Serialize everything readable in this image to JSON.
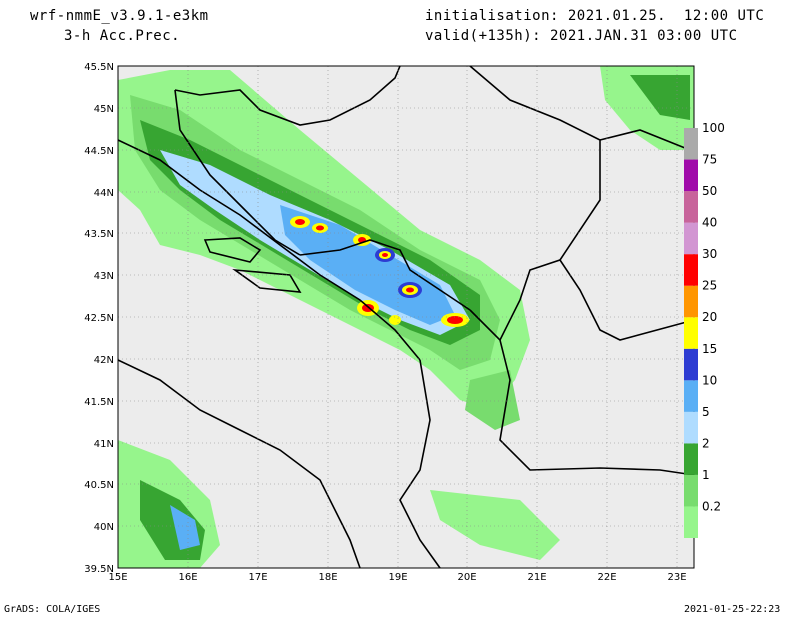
{
  "header": {
    "model": "wrf-nmmE_v3.9.1-e3km",
    "variable": "3-h Acc.Prec.",
    "init": "initialisation: 2021.01.25.  12:00 UTC",
    "valid": "valid(+135h): 2021.JAN.31 03:00 UTC"
  },
  "footer": {
    "credit": "GrADS: COLA/IGES",
    "timestamp": "2021-01-25-22:23"
  },
  "map": {
    "lon_ticks": [
      "15E",
      "16E",
      "17E",
      "18E",
      "19E",
      "20E",
      "21E",
      "22E",
      "23E"
    ],
    "lat_ticks": [
      "45.5N",
      "45N",
      "44.5N",
      "44N",
      "43.5N",
      "43N",
      "42.5N",
      "42N",
      "41.5N",
      "41N",
      "40.5N",
      "40N",
      "39.5N"
    ]
  },
  "colorbar": {
    "levels": [
      "0.2",
      "1",
      "2",
      "5",
      "10",
      "15",
      "20",
      "25",
      "30",
      "40",
      "50",
      "75",
      "100"
    ],
    "colors": [
      "#96f58c",
      "#78dc6e",
      "#37a532",
      "#afdcff",
      "#5aaff5",
      "#2d3cd2",
      "#ffff00",
      "#ff9600",
      "#ff0000",
      "#d296d2",
      "#c8649b",
      "#a00aaa",
      "#aaaaaa"
    ]
  }
}
